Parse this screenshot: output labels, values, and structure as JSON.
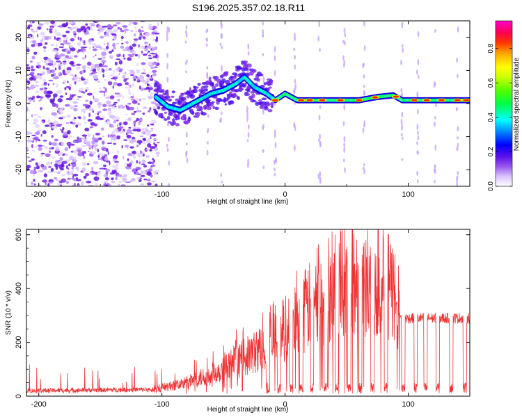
{
  "title": "S196.2025.357.02.18.R11",
  "chart_data": [
    {
      "type": "heatmap",
      "name": "spectrogram",
      "xlabel": "Height of straight line (km)",
      "ylabel": "Frequency (Hz)",
      "xlim": [
        -210,
        150
      ],
      "ylim": [
        -25,
        25
      ],
      "xticks": [
        -200,
        -100,
        0,
        100
      ],
      "yticks": [
        -20,
        -10,
        0,
        10,
        20
      ],
      "colorbar": {
        "label": "Normalized spectral amplitude",
        "range": [
          0,
          0.96
        ],
        "ticks": [
          0,
          0.2,
          0.4,
          0.6,
          0.8
        ],
        "colors": [
          "#ffffff",
          "#c8a6ff",
          "#8a2be2",
          "#4b0ff0",
          "#0000ff",
          "#00aaff",
          "#00ffff",
          "#00ff66",
          "#66ff00",
          "#ccff00",
          "#ffff00",
          "#ffaa00",
          "#ff4400",
          "#ff0000",
          "#ff0066",
          "#ff00cc"
        ]
      },
      "ridge": [
        {
          "x": -105,
          "y": 2
        },
        {
          "x": -95,
          "y": -1
        },
        {
          "x": -85,
          "y": -2
        },
        {
          "x": -75,
          "y": 0
        },
        {
          "x": -60,
          "y": 3
        },
        {
          "x": -50,
          "y": 4
        },
        {
          "x": -40,
          "y": 6
        },
        {
          "x": -33,
          "y": 8
        },
        {
          "x": -25,
          "y": 5
        },
        {
          "x": -15,
          "y": 3
        },
        {
          "x": -8,
          "y": 1
        },
        {
          "x": 0,
          "y": 3
        },
        {
          "x": 10,
          "y": 1
        },
        {
          "x": 30,
          "y": 1
        },
        {
          "x": 60,
          "y": 1
        },
        {
          "x": 75,
          "y": 2
        },
        {
          "x": 88,
          "y": 2.5
        },
        {
          "x": 95,
          "y": 1
        },
        {
          "x": 120,
          "y": 1
        },
        {
          "x": 150,
          "y": 1
        }
      ],
      "noise_region": [
        -210,
        -103
      ]
    },
    {
      "type": "line",
      "name": "snr",
      "xlabel": "Height of straight line (km)",
      "ylabel": "SNR (10 * v/v)",
      "xlim": [
        -210,
        150
      ],
      "ylim": [
        0,
        620
      ],
      "xticks": [
        -200,
        -100,
        0,
        100
      ],
      "yticks": [
        0,
        200,
        400,
        600
      ],
      "color": "#ee3333",
      "envelope": [
        {
          "x": -210,
          "y": 20
        },
        {
          "x": -110,
          "y": 25
        },
        {
          "x": -100,
          "y": 35
        },
        {
          "x": -80,
          "y": 55
        },
        {
          "x": -60,
          "y": 90
        },
        {
          "x": -40,
          "y": 140
        },
        {
          "x": -25,
          "y": 180
        },
        {
          "x": -10,
          "y": 230
        },
        {
          "x": 0,
          "y": 280
        },
        {
          "x": 10,
          "y": 330
        },
        {
          "x": 20,
          "y": 370
        },
        {
          "x": 35,
          "y": 420
        },
        {
          "x": 50,
          "y": 450
        },
        {
          "x": 65,
          "y": 470
        },
        {
          "x": 80,
          "y": 470
        },
        {
          "x": 90,
          "y": 420
        },
        {
          "x": 93,
          "y": 290
        },
        {
          "x": 120,
          "y": 290
        },
        {
          "x": 150,
          "y": 290
        }
      ],
      "dropouts": [
        -14,
        -5,
        5,
        13,
        22,
        33,
        42,
        52,
        61,
        71,
        82,
        96,
        106,
        114,
        124,
        135,
        146
      ]
    }
  ]
}
